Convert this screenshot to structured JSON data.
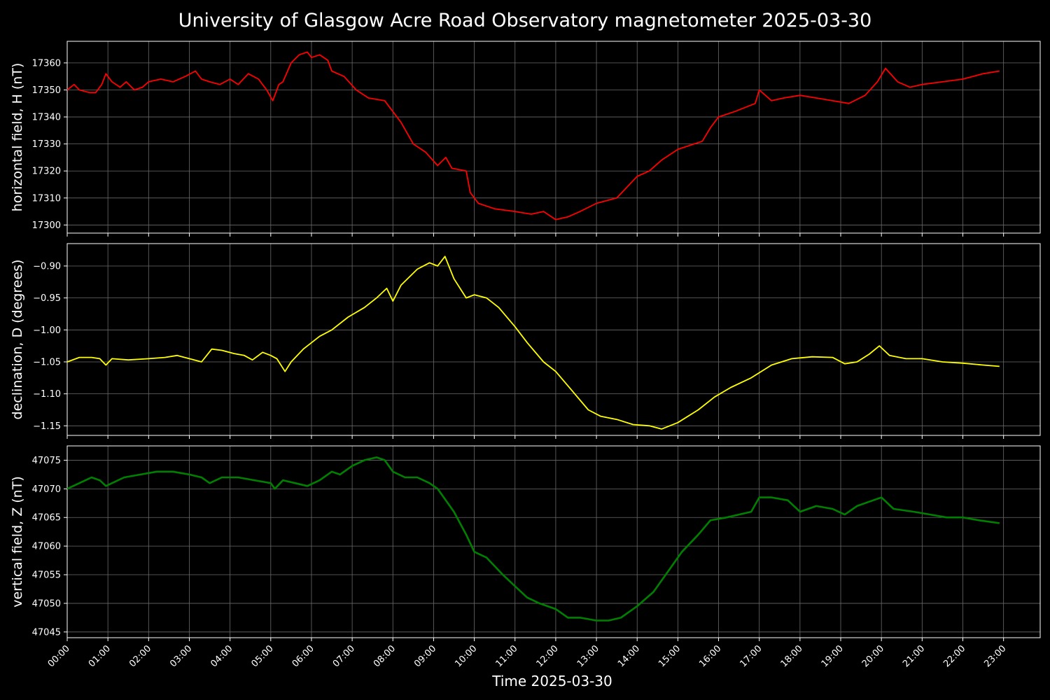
{
  "chart_data": {
    "type": "line",
    "title": "University of Glasgow Acre Road Observatory magnetometer 2025-03-30",
    "xlabel": "Time 2025-03-30",
    "x_ticks": [
      "00:00",
      "01:00",
      "02:00",
      "03:00",
      "04:00",
      "05:00",
      "06:00",
      "07:00",
      "08:00",
      "09:00",
      "10:00",
      "11:00",
      "12:00",
      "13:00",
      "14:00",
      "15:00",
      "16:00",
      "17:00",
      "18:00",
      "19:00",
      "20:00",
      "21:00",
      "22:00",
      "23:00"
    ],
    "xlim_hours": [
      0,
      23.9
    ],
    "grid": true,
    "panels": [
      {
        "name": "H",
        "ylabel": "horizontal field, H (nT)",
        "color": "#ff0000",
        "ylim": [
          17297,
          17368
        ],
        "yticks": [
          17300,
          17310,
          17320,
          17330,
          17340,
          17350,
          17360
        ],
        "series": {
          "x": [
            0,
            0.17,
            0.3,
            0.55,
            0.7,
            0.85,
            0.95,
            1.1,
            1.3,
            1.45,
            1.65,
            1.85,
            2.0,
            2.3,
            2.6,
            2.9,
            3.15,
            3.3,
            3.5,
            3.75,
            4.0,
            4.2,
            4.45,
            4.7,
            4.9,
            5.05,
            5.2,
            5.3,
            5.5,
            5.7,
            5.9,
            6.0,
            6.2,
            6.4,
            6.5,
            6.8,
            7.1,
            7.4,
            7.8,
            8.2,
            8.5,
            8.8,
            9.1,
            9.3,
            9.45,
            9.8,
            9.9,
            10.1,
            10.5,
            11.0,
            11.4,
            11.7,
            12.0,
            12.3,
            12.6,
            13.0,
            13.5,
            14.0,
            14.3,
            14.6,
            15.0,
            15.4,
            15.6,
            15.8,
            16.0,
            16.4,
            16.9,
            17.0,
            17.3,
            17.6,
            18.0,
            18.4,
            18.8,
            19.2,
            19.6,
            19.9,
            20.1,
            20.4,
            20.7,
            21.0,
            21.5,
            22.0,
            22.5,
            22.9
          ],
          "y": [
            17350,
            17352,
            17350,
            17349,
            17349,
            17352,
            17356,
            17353,
            17351,
            17353,
            17350,
            17351,
            17353,
            17354,
            17353,
            17355,
            17357,
            17354,
            17353,
            17352,
            17354,
            17352,
            17356,
            17354,
            17350,
            17346,
            17352,
            17353,
            17360,
            17363,
            17364,
            17362,
            17363,
            17361,
            17357,
            17355,
            17350,
            17347,
            17346,
            17338,
            17330,
            17327,
            17322,
            17325,
            17321,
            17320,
            17312,
            17308,
            17306,
            17305,
            17304,
            17305,
            17302,
            17303,
            17305,
            17308,
            17310,
            17318,
            17320,
            17324,
            17328,
            17330,
            17331,
            17336,
            17340,
            17342,
            17345,
            17350,
            17346,
            17347,
            17348,
            17347,
            17346,
            17345,
            17348,
            17353,
            17358,
            17353,
            17351,
            17352,
            17353,
            17354,
            17356,
            17357
          ]
        }
      },
      {
        "name": "D",
        "ylabel": "declination, D (degrees)",
        "color": "#ffff00",
        "ylim": [
          -1.165,
          -0.865
        ],
        "yticks": [
          -1.15,
          -1.1,
          -1.05,
          -1.0,
          -0.95,
          -0.9
        ],
        "ytick_labels": [
          "−1.15",
          "−1.10",
          "−1.05",
          "−1.00",
          "−0.95",
          "−0.90"
        ],
        "series": {
          "x": [
            0,
            0.3,
            0.6,
            0.8,
            0.95,
            1.1,
            1.5,
            2.0,
            2.4,
            2.7,
            3.0,
            3.3,
            3.55,
            3.8,
            4.1,
            4.35,
            4.55,
            4.8,
            5.0,
            5.15,
            5.35,
            5.5,
            5.8,
            6.2,
            6.5,
            6.9,
            7.3,
            7.6,
            7.85,
            8.0,
            8.2,
            8.6,
            8.9,
            9.1,
            9.28,
            9.5,
            9.8,
            10.0,
            10.3,
            10.6,
            11.0,
            11.3,
            11.7,
            12.0,
            12.4,
            12.8,
            13.1,
            13.5,
            13.9,
            14.3,
            14.6,
            15.0,
            15.5,
            15.9,
            16.3,
            16.8,
            17.3,
            17.8,
            18.3,
            18.8,
            19.1,
            19.4,
            19.7,
            19.95,
            20.2,
            20.6,
            21.0,
            21.5,
            22.0,
            22.5,
            22.9
          ],
          "y": [
            -1.05,
            -1.043,
            -1.043,
            -1.045,
            -1.055,
            -1.045,
            -1.047,
            -1.045,
            -1.043,
            -1.04,
            -1.045,
            -1.05,
            -1.03,
            -1.032,
            -1.037,
            -1.04,
            -1.047,
            -1.035,
            -1.04,
            -1.045,
            -1.065,
            -1.05,
            -1.03,
            -1.01,
            -1.0,
            -0.98,
            -0.965,
            -0.95,
            -0.935,
            -0.955,
            -0.93,
            -0.905,
            -0.895,
            -0.9,
            -0.885,
            -0.92,
            -0.95,
            -0.945,
            -0.95,
            -0.965,
            -0.995,
            -1.02,
            -1.05,
            -1.065,
            -1.095,
            -1.125,
            -1.135,
            -1.14,
            -1.148,
            -1.15,
            -1.155,
            -1.145,
            -1.125,
            -1.105,
            -1.09,
            -1.075,
            -1.055,
            -1.045,
            -1.042,
            -1.043,
            -1.053,
            -1.05,
            -1.038,
            -1.025,
            -1.04,
            -1.045,
            -1.045,
            -1.05,
            -1.052,
            -1.055,
            -1.057
          ]
        }
      },
      {
        "name": "Z",
        "ylabel": "vertical field, Z (nT)",
        "color": "#008000",
        "ylim": [
          47044,
          47077.5
        ],
        "yticks": [
          47045,
          47050,
          47055,
          47060,
          47065,
          47070,
          47075
        ],
        "series": {
          "x": [
            0,
            0.3,
            0.6,
            0.8,
            0.95,
            1.1,
            1.4,
            1.8,
            2.2,
            2.6,
            3.0,
            3.3,
            3.5,
            3.8,
            4.2,
            4.6,
            5.0,
            5.1,
            5.3,
            5.6,
            5.9,
            6.2,
            6.5,
            6.7,
            7.0,
            7.3,
            7.6,
            7.8,
            8.0,
            8.3,
            8.6,
            8.9,
            9.1,
            9.3,
            9.5,
            9.8,
            10.0,
            10.3,
            10.7,
            11.0,
            11.3,
            11.6,
            12.0,
            12.3,
            12.6,
            13.0,
            13.3,
            13.6,
            14.0,
            14.4,
            14.8,
            15.1,
            15.5,
            15.8,
            16.2,
            16.5,
            16.8,
            17.0,
            17.3,
            17.7,
            18.0,
            18.4,
            18.8,
            19.1,
            19.4,
            19.8,
            20.0,
            20.3,
            20.8,
            21.2,
            21.6,
            22.0,
            22.4,
            22.9
          ],
          "y": [
            47070,
            47071,
            47072,
            47071.5,
            47070.5,
            47071,
            47072,
            47072.5,
            47073,
            47073,
            47072.5,
            47072,
            47071,
            47072,
            47072,
            47071.5,
            47071,
            47070,
            47071.5,
            47071,
            47070.5,
            47071.5,
            47073,
            47072.5,
            47074,
            47075,
            47075.5,
            47075,
            47073,
            47072,
            47072,
            47071,
            47070,
            47068,
            47066,
            47062,
            47059,
            47058,
            47055,
            47053,
            47051,
            47050,
            47049,
            47047.5,
            47047.5,
            47047,
            47047,
            47047.5,
            47049.5,
            47052,
            47056,
            47059,
            47062,
            47064.5,
            47065,
            47065.5,
            47066,
            47068.5,
            47068.5,
            47068,
            47066,
            47067,
            47066.5,
            47065.5,
            47067,
            47068,
            47068.5,
            47066.5,
            47066,
            47065.5,
            47065,
            47065,
            47064.5,
            47064
          ]
        }
      }
    ]
  }
}
